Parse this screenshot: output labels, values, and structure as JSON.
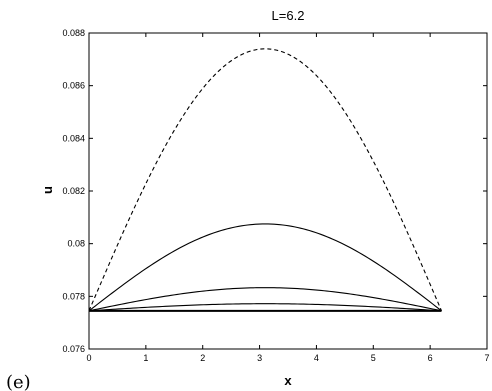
{
  "panel_label": "(e)",
  "chart_data": {
    "type": "line",
    "title": "L=6.2",
    "xlabel": "x",
    "ylabel": "u",
    "xlim": [
      0,
      7
    ],
    "ylim": [
      0.076,
      0.088
    ],
    "x_ticks": [
      "0",
      "1",
      "2",
      "3",
      "4",
      "5",
      "6",
      "7"
    ],
    "y_ticks": [
      "0.076",
      "0.078",
      "0.08",
      "0.082",
      "0.084",
      "0.086",
      "0.088"
    ],
    "grid": false,
    "legend": "none",
    "curve_shape": "sine arch on [0, 6.2]",
    "series": [
      {
        "style": "dashed",
        "points": [
          [
            0,
            0.07745
          ],
          [
            1.55,
            0.08534
          ],
          [
            3.1,
            0.0874
          ],
          [
            4.65,
            0.08534
          ],
          [
            6.2,
            0.07745
          ]
        ]
      },
      {
        "style": "solid",
        "points": [
          [
            0,
            0.07745
          ],
          [
            1.55,
            0.07981
          ],
          [
            3.1,
            0.08075
          ],
          [
            4.65,
            0.07981
          ],
          [
            6.2,
            0.07745
          ]
        ]
      },
      {
        "style": "solid",
        "points": [
          [
            0,
            0.07745
          ],
          [
            1.55,
            0.07807
          ],
          [
            3.1,
            0.07833
          ],
          [
            4.65,
            0.07807
          ],
          [
            6.2,
            0.07745
          ]
        ]
      },
      {
        "style": "solid",
        "points": [
          [
            0,
            0.07745
          ],
          [
            1.55,
            0.07764
          ],
          [
            3.1,
            0.07772
          ],
          [
            4.65,
            0.07764
          ],
          [
            6.2,
            0.07745
          ]
        ]
      },
      {
        "style": "solid",
        "points": [
          [
            0,
            0.07745
          ],
          [
            3.1,
            0.07745
          ],
          [
            6.2,
            0.07745
          ]
        ]
      }
    ]
  }
}
